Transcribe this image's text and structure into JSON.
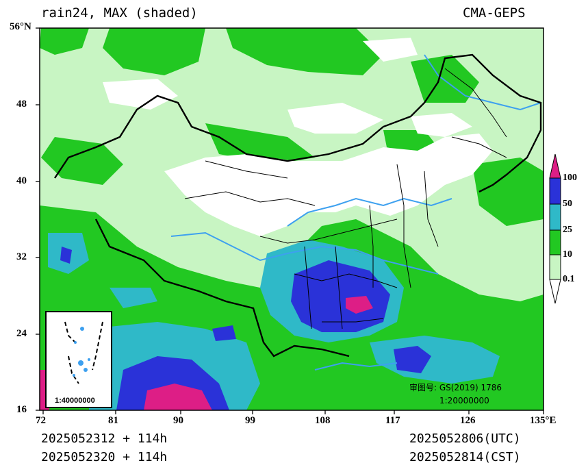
{
  "header": {
    "title_left": "rain24, MAX (shaded)",
    "title_right": "CMA-GEPS"
  },
  "axes": {
    "lat_ticks": [
      "56°N",
      "48",
      "40",
      "32",
      "24",
      "16"
    ],
    "lon_ticks": [
      "72",
      "81",
      "90",
      "99",
      "108",
      "117",
      "126",
      "135°E"
    ],
    "lat_range": [
      16,
      56
    ],
    "lon_range": [
      72,
      135
    ]
  },
  "legend": {
    "levels": [
      "100",
      "50",
      "25",
      "10",
      "0.1"
    ],
    "colors": {
      "lt01": "#ffffff",
      "c01": "#c8f5c3",
      "c10": "#22c822",
      "c25": "#2fb9c8",
      "c50": "#2a32d8",
      "c100": "#dd1e86",
      "river": "#3da0ef"
    }
  },
  "inset": {
    "scale": "1:40000000"
  },
  "annotation": {
    "review_no": "审图号: GS(2019) 1786",
    "scale": "1:20000000"
  },
  "footer": {
    "init_utc": "2025052312 + 114h",
    "init_cst": "2025052320 + 114h",
    "valid_utc": "2025052806(UTC)",
    "valid_cst": "2025052814(CST)"
  }
}
